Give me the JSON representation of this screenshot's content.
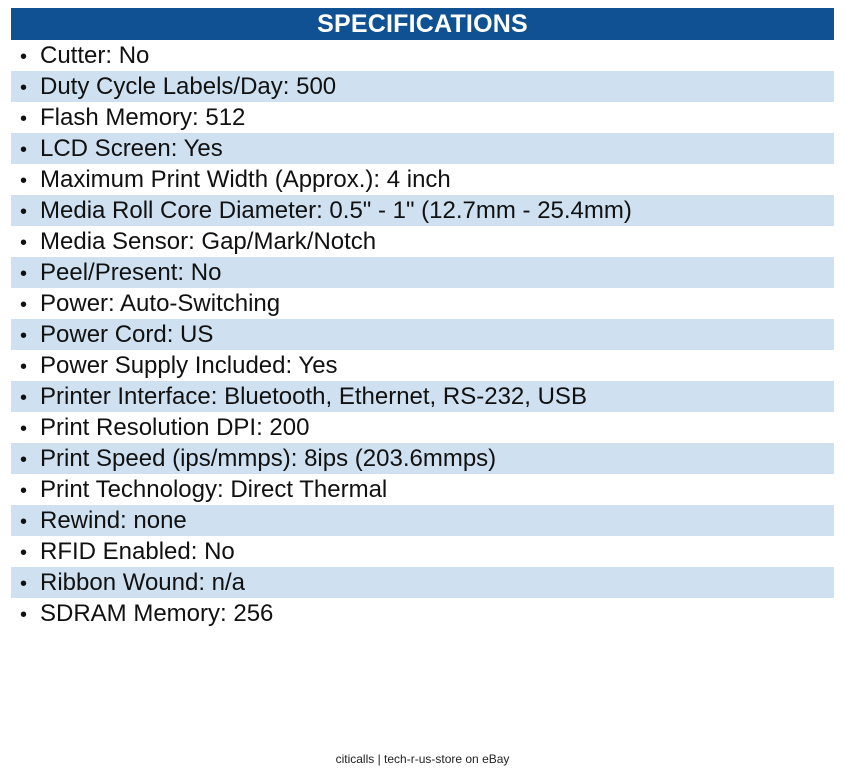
{
  "header": {
    "title": "SPECIFICATIONS"
  },
  "colors": {
    "header_bg": "#0F5192",
    "alt_row_bg": "#CFE0F1",
    "text": "#111111"
  },
  "specs": [
    {
      "label": "Cutter: No"
    },
    {
      "label": "Duty Cycle Labels/Day: 500"
    },
    {
      "label": "Flash Memory: 512"
    },
    {
      "label": "LCD Screen: Yes"
    },
    {
      "label": "Maximum Print Width (Approx.): 4 inch"
    },
    {
      "label": "Media Roll Core Diameter: 0.5\" - 1\" (12.7mm - 25.4mm)"
    },
    {
      "label": "Media Sensor: Gap/Mark/Notch"
    },
    {
      "label": "Peel/Present: No"
    },
    {
      "label": "Power: Auto-Switching"
    },
    {
      "label": "Power Cord: US"
    },
    {
      "label": "Power Supply Included: Yes"
    },
    {
      "label": "Printer Interface: Bluetooth, Ethernet, RS-232, USB"
    },
    {
      "label": "Print Resolution DPI: 200"
    },
    {
      "label": "Print Speed (ips/mmps): 8ips (203.6mmps)"
    },
    {
      "label": "Print Technology: Direct Thermal"
    },
    {
      "label": "Rewind: none"
    },
    {
      "label": "RFID Enabled: No"
    },
    {
      "label": "Ribbon Wound: n/a"
    },
    {
      "label": "SDRAM Memory: 256"
    }
  ],
  "bullet": "•",
  "footer": {
    "text": "citicalls | tech-r-us-store on eBay"
  }
}
